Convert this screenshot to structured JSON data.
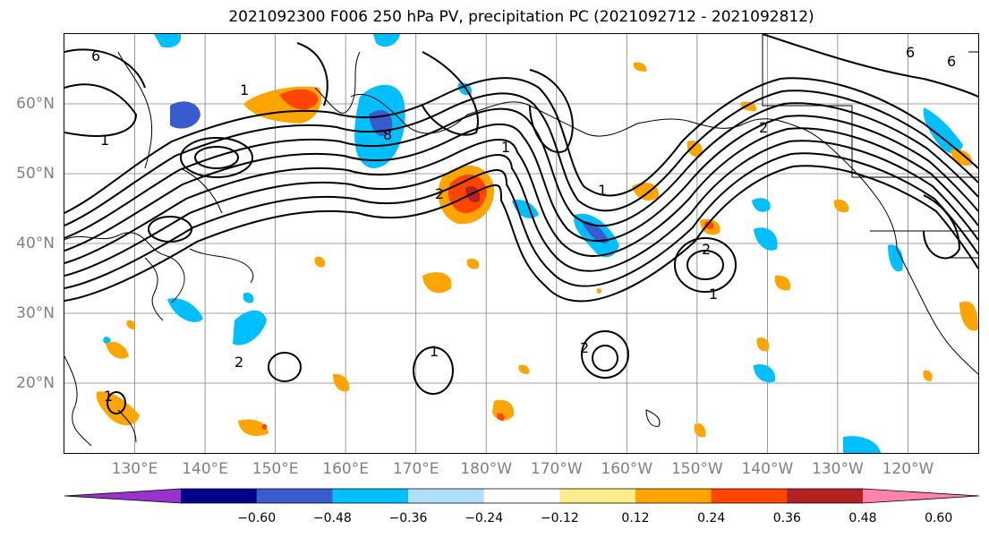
{
  "title": "2021092300 F006 250 hPa PV, precipitation PC (2021092712 - 2021092812)",
  "map": {
    "lat_labels": [
      "60°N",
      "50°N",
      "40°N",
      "30°N",
      "20°N"
    ],
    "lat_values": [
      60,
      50,
      40,
      30,
      20
    ],
    "lon_labels": [
      "130°E",
      "140°E",
      "150°E",
      "160°E",
      "170°E",
      "180°W",
      "170°W",
      "160°W",
      "150°W",
      "140°W",
      "130°W",
      "120°W"
    ],
    "lon_values": [
      130,
      140,
      150,
      160,
      170,
      180,
      190,
      200,
      210,
      220,
      230,
      240
    ],
    "lon_range": [
      120,
      250
    ],
    "lat_range": [
      10,
      70
    ],
    "land_color": "#ffffff",
    "coastline_color": "#000000",
    "grid_color": "#808080",
    "contour_labels": [
      "1",
      "1",
      "2",
      "1",
      "6",
      "2",
      "2",
      "2",
      "1",
      "1",
      "1",
      "1",
      "2",
      "6",
      "6",
      "8"
    ]
  },
  "colorbar": {
    "extend": "both",
    "colors": [
      "#9932cc",
      "#00008b",
      "#3a5bcd",
      "#00bfff",
      "#b0e0ff",
      "#ffffff",
      "#ffec8b",
      "#ffa500",
      "#ff4500",
      "#b22222",
      "#ff83aa"
    ],
    "tick_labels": [
      "−0.60",
      "−0.48",
      "−0.36",
      "−0.24",
      "−0.12",
      "0.12",
      "0.24",
      "0.36",
      "0.48",
      "0.60"
    ],
    "tick_values": [
      -0.6,
      -0.48,
      -0.36,
      -0.24,
      -0.12,
      0.12,
      0.24,
      0.36,
      0.48,
      0.6
    ]
  }
}
